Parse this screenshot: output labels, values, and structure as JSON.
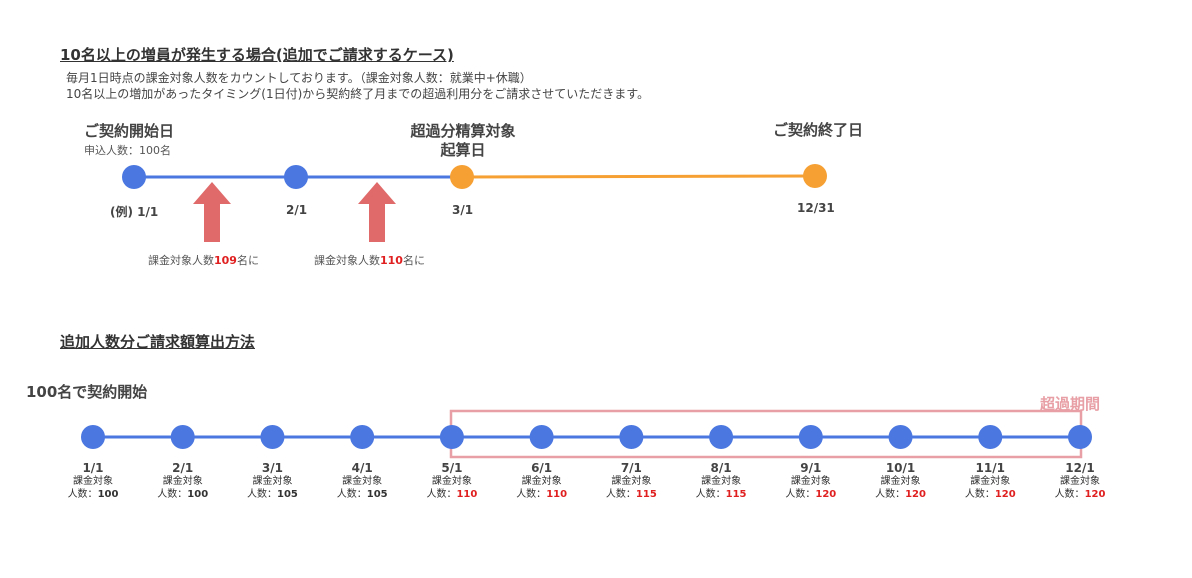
{
  "section1": {
    "title": "10名以上の増員が発生する場合(追加でご請求するケース)",
    "desc_line1": "毎月1日時点の課金対象人数をカウントしております。（課金対象人数：就業中+休職）",
    "desc_line2": "10名以上の増加があったタイミング(1日付)から契約終了月までの超過利用分をご請求させていただきます。",
    "start_label": "ご契約開始日",
    "start_sub": "申込人数：100名",
    "overage_label_line1": "超過分精算対象",
    "overage_label_line2": "起算日",
    "end_label": "ご契約終了日",
    "dates": [
      "(例) 1/1",
      "2/1",
      "3/1",
      "12/31"
    ],
    "arrow1": {
      "prefix": "課金対象人数",
      "value": "109",
      "suffix": "名に"
    },
    "arrow2": {
      "prefix": "課金対象人数",
      "value": "110",
      "suffix": "名に"
    },
    "colors": {
      "blue": "#4a77e0",
      "orange": "#f6a033",
      "arrow": "#e06a6a"
    }
  },
  "section2": {
    "title": "追加人数分ご請求額算出方法",
    "start_caption": "100名で契約開始",
    "period_label": "超過期間",
    "period_color": "#e8a0a6",
    "sub_label": "課金対象",
    "count_prefix": "人数：",
    "months": [
      {
        "date": "1/1",
        "count": "100",
        "over": false
      },
      {
        "date": "2/1",
        "count": "100",
        "over": false
      },
      {
        "date": "3/1",
        "count": "105",
        "over": false
      },
      {
        "date": "4/1",
        "count": "105",
        "over": false
      },
      {
        "date": "5/1",
        "count": "110",
        "over": true
      },
      {
        "date": "6/1",
        "count": "110",
        "over": true
      },
      {
        "date": "7/1",
        "count": "115",
        "over": true
      },
      {
        "date": "8/1",
        "count": "115",
        "over": true
      },
      {
        "date": "9/1",
        "count": "120",
        "over": true
      },
      {
        "date": "10/1",
        "count": "120",
        "over": true
      },
      {
        "date": "11/1",
        "count": "120",
        "over": true
      },
      {
        "date": "12/1",
        "count": "120",
        "over": true
      }
    ]
  }
}
